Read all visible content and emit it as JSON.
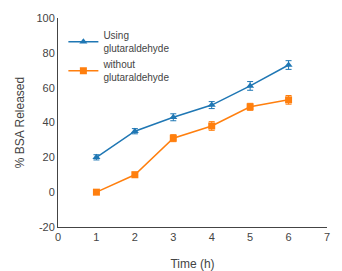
{
  "chart_data": {
    "type": "line",
    "x_label": "Time (h)",
    "y_label": "% BSA Released",
    "x": [
      1,
      2,
      3,
      4,
      5,
      6
    ],
    "series": [
      {
        "name": "Using\nglutaraldehyde",
        "marker": "triangle",
        "line_style": "solid",
        "values": [
          20,
          35,
          43,
          50,
          61,
          73
        ],
        "errors": [
          1.5,
          1.5,
          2.0,
          2.0,
          2.5,
          2.5
        ]
      },
      {
        "name": "without\nglutaraldehyde",
        "marker": "square",
        "line_style": "solid",
        "values": [
          0,
          10,
          31,
          38,
          49,
          53
        ],
        "errors": [
          1.0,
          1.5,
          2.0,
          2.5,
          2.0,
          2.5
        ]
      }
    ],
    "xlim": [
      0,
      7
    ],
    "ylim": [
      -20,
      100
    ],
    "xticks": [
      0,
      1,
      2,
      3,
      4,
      5,
      6,
      7
    ],
    "yticks": [
      -20,
      0,
      20,
      40,
      60,
      80,
      100
    ],
    "legend": "upper left",
    "grid": false
  }
}
